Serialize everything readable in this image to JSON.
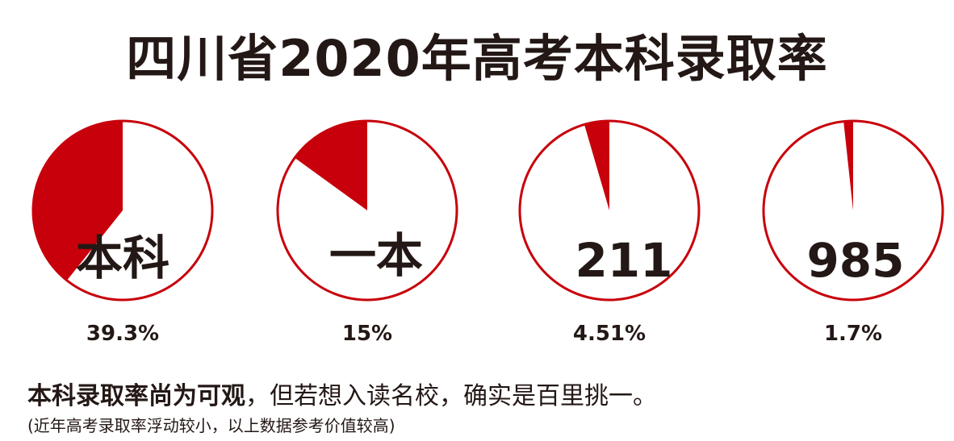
{
  "title": "四川省2020年高考本科录取率",
  "colors": {
    "accent": "#c8000b",
    "text": "#231815",
    "background": "#ffffff"
  },
  "chart_data": {
    "type": "pie",
    "title": "四川省2020年高考本科录取率",
    "series": [
      {
        "name": "本科",
        "value": 39.3,
        "value_label": "39.3%"
      },
      {
        "name": "一本",
        "value": 15,
        "value_label": "15%"
      },
      {
        "name": "211",
        "value": 4.51,
        "value_label": "4.51%"
      },
      {
        "name": "985",
        "value": 1.7,
        "value_label": "1.7%"
      }
    ]
  },
  "footer": {
    "headline_bold": "本科录取率尚为可观",
    "headline_rest": "，但若想入读名校，确实是百里挑一。",
    "note": "(近年高考录取率浮动较小，以上数据参考价值较高)"
  }
}
